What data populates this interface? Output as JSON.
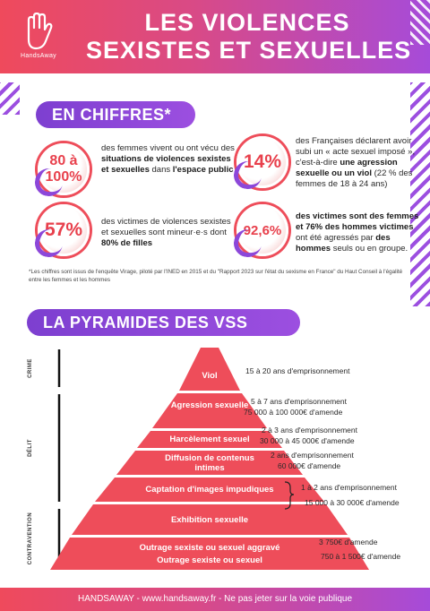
{
  "header": {
    "logo_text": "HandsAway",
    "title_line1": "LES VIOLENCES",
    "title_line2": "SEXISTES ET SEXUELLES"
  },
  "stats_section": {
    "title": "EN CHIFFRES*",
    "items": [
      {
        "value": "80 à 100%",
        "pre": "des femmes vivent ou ont vécu des ",
        "bold": "situations de violences sexistes et sexuelles",
        "mid": " dans ",
        "bold2": "l'espace public",
        "post": ""
      },
      {
        "value": "14%",
        "pre": "des Françaises déclarent avoir subi un « acte sexuel imposé », c'est-à-dire ",
        "bold": "une agression sexuelle ou un viol",
        "mid": " (22 % des femmes de 18 à 24 ans)",
        "bold2": "",
        "post": ""
      },
      {
        "value": "57%",
        "pre": "des victimes de violences sexistes et sexuelles sont mineur·e·s dont ",
        "bold": "80% de filles",
        "mid": "",
        "bold2": "",
        "post": ""
      },
      {
        "value": "92,6%",
        "pre": "",
        "bold": "des victimes sont des femmes et 76% des hommes victimes",
        "mid": " ont été agressés par ",
        "bold2": "des hommes",
        "post": " seuls ou en groupe."
      }
    ],
    "footnote": "*Les chiffres sont issus de l'enquête Virage, piloté par l'INED en 2015 et du \"Rapport 2023 sur l'état du sexisme en France\" du Haut Conseil à l'égalité entre les femmes et les hommes"
  },
  "pyramid_section": {
    "title": "LA PYRAMIDES DES VSS",
    "categories": [
      "CRIME",
      "DÉLIT",
      "CONTRAVENTION"
    ],
    "levels": [
      {
        "label": "Viol",
        "penalty1": "15 à 20 ans d'emprisonnement",
        "penalty2": ""
      },
      {
        "label": "Agression sexuelle",
        "penalty1": "5 à 7 ans d'emprisonnement",
        "penalty2": "75 000 à 100 000€ d'amende"
      },
      {
        "label": "Harcèlement sexuel",
        "penalty1": "2 à 3 ans d'emprisonnement",
        "penalty2": "30 000 à 45 000€ d'amende"
      },
      {
        "label": "Diffusion de contenus intimes",
        "penalty1": "2 ans d'emprisonnement",
        "penalty2": "60 000€ d'amende"
      },
      {
        "label": "Captation d'images impudiques",
        "penalty1": "",
        "penalty2": ""
      },
      {
        "label": "Exhibition sexuelle",
        "penalty1": "",
        "penalty2": ""
      },
      {
        "label": "Outrage sexiste ou sexuel aggravé",
        "penalty1": "3 750€ d'amende",
        "penalty2": ""
      },
      {
        "label": "Outrage sexiste ou sexuel",
        "penalty1": "750 à 1 500€ d'amende",
        "penalty2": ""
      }
    ],
    "shared_penalty1": "1 à 2  ans d'emprisonnement",
    "shared_penalty2": "15 000 à 30 000€ d'amende"
  },
  "footer": {
    "text": "HANDSAWAY - www.handsaway.fr - Ne pas jeter sur la voie publique"
  },
  "colors": {
    "red": "#ee4d5a",
    "purple": "#9c4fe0",
    "gradient_start": "#ef4a5c",
    "gradient_end": "#a64bd9"
  }
}
